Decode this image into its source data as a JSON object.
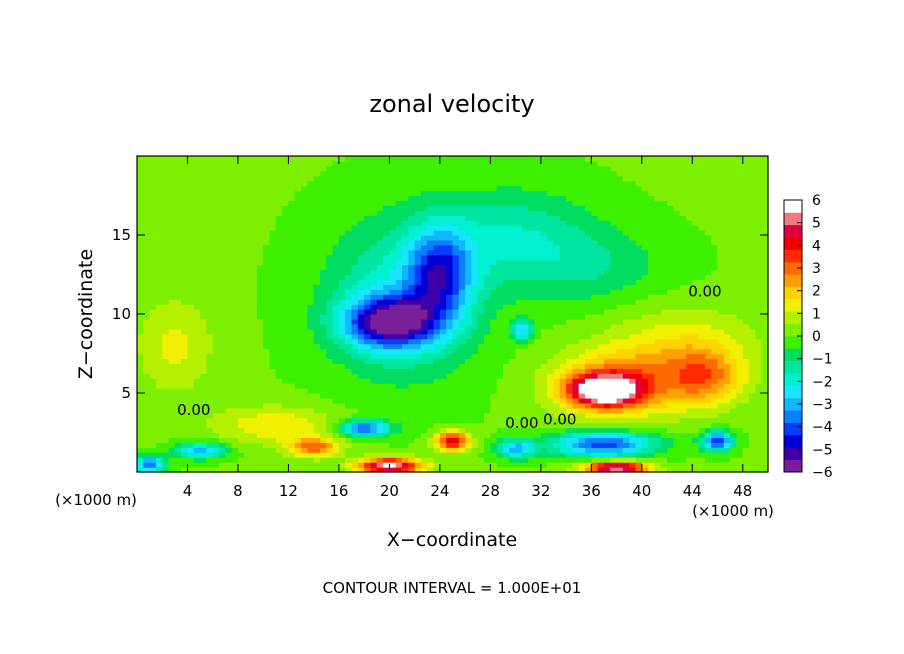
{
  "chart_data": {
    "type": "heatmap",
    "title": "zonal velocity",
    "xlabel": "X−coordinate",
    "ylabel": "Z−coordinate",
    "x_units_left": "(×1000 m)",
    "x_units_right": "(×1000 m)",
    "footer": "CONTOUR INTERVAL = 1.000E+01",
    "xlim": [
      0,
      50
    ],
    "ylim": [
      0,
      20
    ],
    "x_ticks": [
      4,
      8,
      12,
      16,
      20,
      24,
      28,
      32,
      36,
      40,
      44,
      48
    ],
    "y_ticks": [
      5,
      10,
      15
    ],
    "colorbar": {
      "min": -6,
      "max": 6,
      "ticks": [
        6,
        5,
        4,
        3,
        2,
        1,
        0,
        -1,
        -2,
        -3,
        -4,
        -5,
        -6
      ],
      "tick_labels": [
        "6",
        "5",
        "4",
        "3",
        "2",
        "1",
        "0",
        "−1",
        "−2",
        "−3",
        "−4",
        "−5",
        "−6"
      ],
      "colors": [
        "#7a1f9a",
        "#3e00a8",
        "#0000d6",
        "#0a3cff",
        "#0a80ff",
        "#12b8ff",
        "#18e6ff",
        "#00f0d0",
        "#00e6a0",
        "#00dd60",
        "#3cf000",
        "#7cf000",
        "#b4f000",
        "#f0f000",
        "#ffd200",
        "#ffa000",
        "#ff6a00",
        "#ff2a00",
        "#ee0000",
        "#e00040",
        "#f07a80",
        "#ffffff"
      ]
    },
    "contour_labels": [
      "0.00",
      "0.00",
      "0.00",
      "0.00"
    ],
    "field": [
      {
        "x": 20,
        "z": 9.5,
        "value": -5,
        "sx": 3.5,
        "sz": 1.6
      },
      {
        "x": 24,
        "z": 12.5,
        "value": -3.5,
        "sx": 2.5,
        "sz": 3.0
      },
      {
        "x": 21,
        "z": 11,
        "value": -2,
        "sx": 6,
        "sz": 5
      },
      {
        "x": 30,
        "z": 15,
        "value": -1.5,
        "sx": 6,
        "sz": 3
      },
      {
        "x": 36,
        "z": 13,
        "value": -1,
        "sx": 6,
        "sz": 2.5
      },
      {
        "x": 37,
        "z": 5.2,
        "value": 6,
        "sx": 2.5,
        "sz": 0.9
      },
      {
        "x": 38,
        "z": 5.5,
        "value": 3,
        "sx": 5,
        "sz": 2
      },
      {
        "x": 45,
        "z": 6,
        "value": 2.3,
        "sx": 3,
        "sz": 1.8
      },
      {
        "x": 43,
        "z": 8,
        "value": 1.4,
        "sx": 6,
        "sz": 2.5
      },
      {
        "x": 3,
        "z": 8,
        "value": 1.2,
        "sx": 3,
        "sz": 3
      },
      {
        "x": 11,
        "z": 3,
        "value": 1.5,
        "sx": 5,
        "sz": 1.2
      },
      {
        "x": 37,
        "z": 1.8,
        "value": -4.2,
        "sx": 4,
        "sz": 0.8
      },
      {
        "x": 46,
        "z": 2,
        "value": -4.5,
        "sx": 1.2,
        "sz": 0.6
      },
      {
        "x": 18,
        "z": 2.8,
        "value": -4,
        "sx": 2,
        "sz": 0.5
      },
      {
        "x": 25,
        "z": 2,
        "value": 4.5,
        "sx": 1.3,
        "sz": 0.6
      },
      {
        "x": 20,
        "z": 0.4,
        "value": 6,
        "sx": 2.5,
        "sz": 0.5
      },
      {
        "x": 38,
        "z": 0.3,
        "value": 6,
        "sx": 2.5,
        "sz": 0.4
      },
      {
        "x": 30,
        "z": 1.5,
        "value": -3,
        "sx": 1.5,
        "sz": 0.6
      },
      {
        "x": 14,
        "z": 1.6,
        "value": 3,
        "sx": 2,
        "sz": 0.6
      },
      {
        "x": 5,
        "z": 1.4,
        "value": -3,
        "sx": 2,
        "sz": 0.5
      },
      {
        "x": 1,
        "z": 0.5,
        "value": -4,
        "sx": 1.2,
        "sz": 0.5
      },
      {
        "x": 30.5,
        "z": 9,
        "value": -2.8,
        "sx": 0.8,
        "sz": 0.6
      }
    ]
  }
}
